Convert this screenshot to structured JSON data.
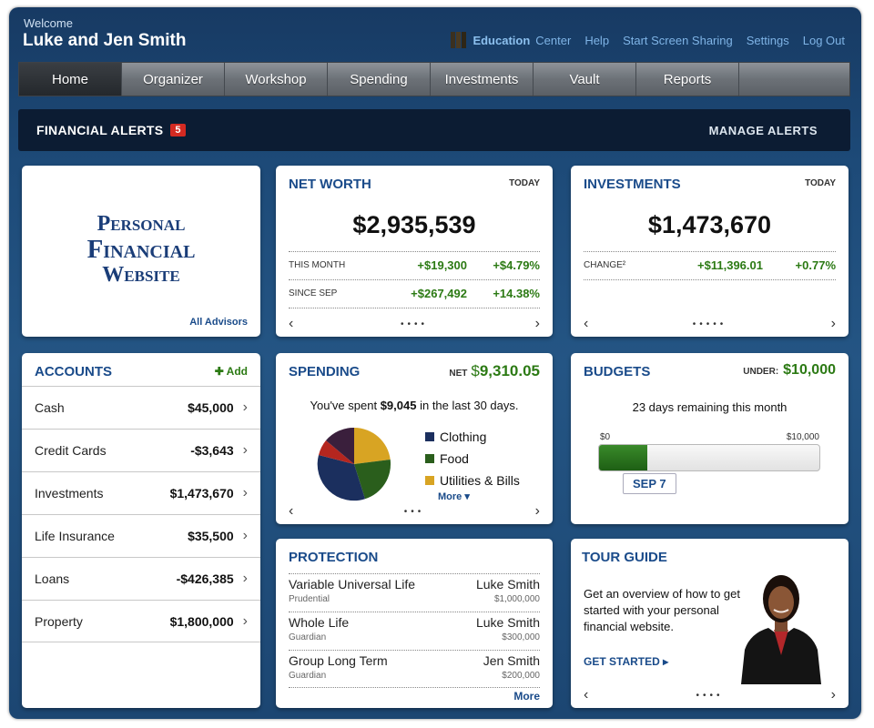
{
  "header": {
    "welcome": "Welcome",
    "user_name": "Luke and Jen Smith",
    "links": {
      "education": "Education",
      "center": "Center",
      "help": "Help",
      "screen_sharing": "Start Screen Sharing",
      "settings": "Settings",
      "logout": "Log Out"
    }
  },
  "nav": {
    "items": [
      "Home",
      "Organizer",
      "Workshop",
      "Spending",
      "Investments",
      "Vault",
      "Reports"
    ],
    "active": "Home"
  },
  "alerts": {
    "title": "FINANCIAL ALERTS",
    "count": "5",
    "manage": "MANAGE ALERTS"
  },
  "logo_card": {
    "line1": "Personal",
    "line2": "Financial",
    "line3": "Website",
    "link": "All Advisors"
  },
  "net_worth": {
    "title": "NET WORTH",
    "period": "TODAY",
    "value": "$2,935,539",
    "rows": [
      {
        "label": "THIS MONTH",
        "amount": "+$19,300",
        "percent": "+$4.79%"
      },
      {
        "label": "SINCE SEP",
        "amount": "+$267,492",
        "percent": "+14.38%"
      }
    ]
  },
  "investments_card": {
    "title": "INVESTMENTS",
    "period": "TODAY",
    "value": "$1,473,670",
    "change_label": "CHANGE²",
    "change_amount": "+$11,396.01",
    "change_percent": "+0.77%"
  },
  "accounts": {
    "title": "ACCOUNTS",
    "add": "Add",
    "items": [
      {
        "name": "Cash",
        "value": "$45,000"
      },
      {
        "name": "Credit Cards",
        "value": "-$3,643"
      },
      {
        "name": "Investments",
        "value": "$1,473,670"
      },
      {
        "name": "Life Insurance",
        "value": "$35,500"
      },
      {
        "name": "Loans",
        "value": "-$426,385"
      },
      {
        "name": "Property",
        "value": "$1,800,000"
      }
    ]
  },
  "spending": {
    "title": "SPENDING",
    "net_label": "NET",
    "net_currency": "$",
    "net_value": "9,310.05",
    "summary_pre": "You've spent",
    "summary_amount": "$9,045",
    "summary_post": "in the last 30 days.",
    "legend": [
      {
        "label": "Clothing",
        "color": "#1b2f5e"
      },
      {
        "label": "Food",
        "color": "#2a5e1c"
      },
      {
        "label": "Utilities & Bills",
        "color": "#d8a423"
      }
    ],
    "more": "More",
    "pie_colors": [
      "#d8a423",
      "#2a5e1c",
      "#1b2f5e",
      "#b5261f",
      "#3a1f3c"
    ]
  },
  "budgets": {
    "title": "BUDGETS",
    "under_label": "UNDER:",
    "under_value": "$10,000",
    "days_remaining": "23 days remaining this month",
    "min_label": "$0",
    "max_label": "$10,000",
    "progress": 0.22,
    "date_chip": "SEP 7"
  },
  "protection": {
    "title": "PROTECTION",
    "items": [
      {
        "policy": "Variable Universal Life",
        "carrier": "Prudential",
        "insured": "Luke Smith",
        "amount": "$1,000,000"
      },
      {
        "policy": "Whole Life",
        "carrier": "Guardian",
        "insured": "Luke Smith",
        "amount": "$300,000"
      },
      {
        "policy": "Group Long Term",
        "carrier": "Guardian",
        "insured": "Jen Smith",
        "amount": "$200,000"
      }
    ],
    "more": "More"
  },
  "tour": {
    "title": "TOUR GUIDE",
    "text": "Get an overview of how to get started with your personal financial website.",
    "cta": "GET STARTED"
  },
  "icons": {
    "prev": "chevron-left-icon",
    "next": "chevron-right-icon",
    "add": "plus-icon",
    "book": "book-icon"
  }
}
